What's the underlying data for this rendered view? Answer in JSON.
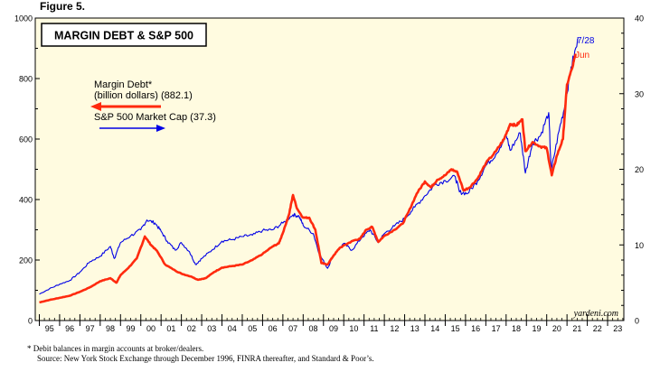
{
  "figure_label": "Figure 5.",
  "footnotes": {
    "note": "*  Debit balances in margin accounts at broker/dealers.",
    "source": "Source: New York Stock Exchange through December 1996, FINRA thereafter, and Standard & Poor’s."
  },
  "colors": {
    "background": "#fffbe0",
    "margin_debt": "#ff2a0e",
    "sp500": "#0000e6"
  },
  "chart_data": {
    "type": "line",
    "title": "MARGIN DEBT & S&P 500",
    "watermark": "yardeni.com",
    "xlim": [
      1994.8,
      2023.8
    ],
    "x_ticks": [
      {
        "x": 1995,
        "label": "95"
      },
      {
        "x": 1996,
        "label": "96"
      },
      {
        "x": 1997,
        "label": "97"
      },
      {
        "x": 1998,
        "label": "98"
      },
      {
        "x": 1999,
        "label": "99"
      },
      {
        "x": 2000,
        "label": "00"
      },
      {
        "x": 2001,
        "label": "01"
      },
      {
        "x": 2002,
        "label": "02"
      },
      {
        "x": 2003,
        "label": "03"
      },
      {
        "x": 2004,
        "label": "04"
      },
      {
        "x": 2005,
        "label": "05"
      },
      {
        "x": 2006,
        "label": "06"
      },
      {
        "x": 2007,
        "label": "07"
      },
      {
        "x": 2008,
        "label": "08"
      },
      {
        "x": 2009,
        "label": "09"
      },
      {
        "x": 2010,
        "label": "10"
      },
      {
        "x": 2011,
        "label": "11"
      },
      {
        "x": 2012,
        "label": "12"
      },
      {
        "x": 2013,
        "label": "13"
      },
      {
        "x": 2014,
        "label": "14"
      },
      {
        "x": 2015,
        "label": "15"
      },
      {
        "x": 2016,
        "label": "16"
      },
      {
        "x": 2017,
        "label": "17"
      },
      {
        "x": 2018,
        "label": "18"
      },
      {
        "x": 2019,
        "label": "19"
      },
      {
        "x": 2020,
        "label": "20"
      },
      {
        "x": 2021,
        "label": "21"
      },
      {
        "x": 2022,
        "label": "22"
      },
      {
        "x": 2023,
        "label": "23"
      }
    ],
    "left_axis": {
      "ylim": [
        0,
        1000
      ],
      "ticks": [
        0,
        200,
        400,
        600,
        800,
        1000
      ]
    },
    "right_axis": {
      "ylim": [
        0,
        40
      ],
      "ticks": [
        0,
        10,
        20,
        30,
        40
      ]
    },
    "legend": {
      "margin_debt_label_1": "Margin Debt*",
      "margin_debt_label_2": "(billion dollars) (882.1)",
      "sp500_label": "S&P 500 Market Cap (37.3)"
    },
    "series": [
      {
        "name": "Margin Debt (billion dollars)",
        "axis": "left",
        "end_label": "Jun",
        "points": [
          [
            1995.0,
            60
          ],
          [
            1995.5,
            68
          ],
          [
            1996.0,
            75
          ],
          [
            1996.5,
            82
          ],
          [
            1997.0,
            95
          ],
          [
            1997.5,
            110
          ],
          [
            1998.0,
            130
          ],
          [
            1998.5,
            140
          ],
          [
            1998.8,
            125
          ],
          [
            1999.0,
            150
          ],
          [
            1999.4,
            175
          ],
          [
            1999.8,
            205
          ],
          [
            2000.2,
            278
          ],
          [
            2000.5,
            250
          ],
          [
            2000.8,
            230
          ],
          [
            2001.2,
            185
          ],
          [
            2001.7,
            165
          ],
          [
            2002.0,
            155
          ],
          [
            2002.5,
            145
          ],
          [
            2002.8,
            135
          ],
          [
            2003.2,
            140
          ],
          [
            2003.6,
            160
          ],
          [
            2004.0,
            175
          ],
          [
            2004.5,
            180
          ],
          [
            2005.0,
            185
          ],
          [
            2005.5,
            200
          ],
          [
            2006.0,
            220
          ],
          [
            2006.5,
            245
          ],
          [
            2006.8,
            255
          ],
          [
            2007.0,
            290
          ],
          [
            2007.3,
            350
          ],
          [
            2007.5,
            415
          ],
          [
            2007.7,
            370
          ],
          [
            2008.0,
            340
          ],
          [
            2008.3,
            340
          ],
          [
            2008.6,
            300
          ],
          [
            2008.9,
            190
          ],
          [
            2009.2,
            185
          ],
          [
            2009.5,
            215
          ],
          [
            2009.8,
            240
          ],
          [
            2010.2,
            255
          ],
          [
            2010.5,
            265
          ],
          [
            2010.8,
            270
          ],
          [
            2011.1,
            300
          ],
          [
            2011.4,
            310
          ],
          [
            2011.7,
            260
          ],
          [
            2012.0,
            280
          ],
          [
            2012.5,
            300
          ],
          [
            2012.9,
            320
          ],
          [
            2013.2,
            360
          ],
          [
            2013.6,
            420
          ],
          [
            2014.0,
            460
          ],
          [
            2014.3,
            440
          ],
          [
            2014.6,
            465
          ],
          [
            2015.0,
            480
          ],
          [
            2015.3,
            500
          ],
          [
            2015.6,
            490
          ],
          [
            2015.9,
            430
          ],
          [
            2016.2,
            440
          ],
          [
            2016.6,
            470
          ],
          [
            2017.0,
            520
          ],
          [
            2017.5,
            560
          ],
          [
            2017.9,
            600
          ],
          [
            2018.2,
            650
          ],
          [
            2018.5,
            645
          ],
          [
            2018.8,
            665
          ],
          [
            2018.95,
            560
          ],
          [
            2019.3,
            590
          ],
          [
            2019.7,
            575
          ],
          [
            2020.0,
            570
          ],
          [
            2020.25,
            480
          ],
          [
            2020.5,
            545
          ],
          [
            2020.8,
            600
          ],
          [
            2021.0,
            780
          ],
          [
            2021.3,
            845
          ],
          [
            2021.42,
            882
          ]
        ]
      },
      {
        "name": "S&P 500 Market Cap (trillion dollars)",
        "axis": "right",
        "end_label": "7/28",
        "points": [
          [
            1995.0,
            3.5
          ],
          [
            1995.5,
            4.2
          ],
          [
            1996.0,
            4.8
          ],
          [
            1996.5,
            5.3
          ],
          [
            1997.0,
            6.4
          ],
          [
            1997.5,
            7.8
          ],
          [
            1998.0,
            8.5
          ],
          [
            1998.5,
            9.8
          ],
          [
            1998.7,
            8.2
          ],
          [
            1999.0,
            10.3
          ],
          [
            1999.5,
            11.2
          ],
          [
            2000.0,
            12.0
          ],
          [
            2000.3,
            13.3
          ],
          [
            2000.7,
            12.9
          ],
          [
            2001.0,
            11.8
          ],
          [
            2001.3,
            10.5
          ],
          [
            2001.7,
            9.3
          ],
          [
            2002.0,
            10.3
          ],
          [
            2002.4,
            9.1
          ],
          [
            2002.7,
            7.4
          ],
          [
            2003.0,
            8.2
          ],
          [
            2003.5,
            9.3
          ],
          [
            2004.0,
            10.5
          ],
          [
            2004.5,
            10.7
          ],
          [
            2005.0,
            11.1
          ],
          [
            2005.5,
            11.3
          ],
          [
            2006.0,
            11.9
          ],
          [
            2006.5,
            12.0
          ],
          [
            2007.0,
            12.9
          ],
          [
            2007.5,
            14.0
          ],
          [
            2007.8,
            13.8
          ],
          [
            2008.0,
            12.6
          ],
          [
            2008.5,
            11.5
          ],
          [
            2008.8,
            8.8
          ],
          [
            2009.2,
            6.9
          ],
          [
            2009.5,
            8.7
          ],
          [
            2010.0,
            10.2
          ],
          [
            2010.4,
            9.3
          ],
          [
            2010.9,
            11.0
          ],
          [
            2011.3,
            12.0
          ],
          [
            2011.7,
            10.3
          ],
          [
            2012.0,
            11.5
          ],
          [
            2012.5,
            12.5
          ],
          [
            2013.0,
            13.5
          ],
          [
            2013.5,
            15.0
          ],
          [
            2014.0,
            16.5
          ],
          [
            2014.5,
            18.0
          ],
          [
            2015.0,
            18.5
          ],
          [
            2015.5,
            19.0
          ],
          [
            2015.7,
            17.0
          ],
          [
            2016.1,
            16.8
          ],
          [
            2016.6,
            18.5
          ],
          [
            2017.0,
            20.5
          ],
          [
            2017.5,
            22.0
          ],
          [
            2018.0,
            24.5
          ],
          [
            2018.2,
            22.5
          ],
          [
            2018.7,
            24.8
          ],
          [
            2018.95,
            19.5
          ],
          [
            2019.3,
            23.5
          ],
          [
            2019.7,
            24.5
          ],
          [
            2020.1,
            27.5
          ],
          [
            2020.22,
            19.8
          ],
          [
            2020.6,
            25.0
          ],
          [
            2020.9,
            28.5
          ],
          [
            2021.2,
            33.5
          ],
          [
            2021.57,
            37.3
          ]
        ]
      }
    ]
  }
}
